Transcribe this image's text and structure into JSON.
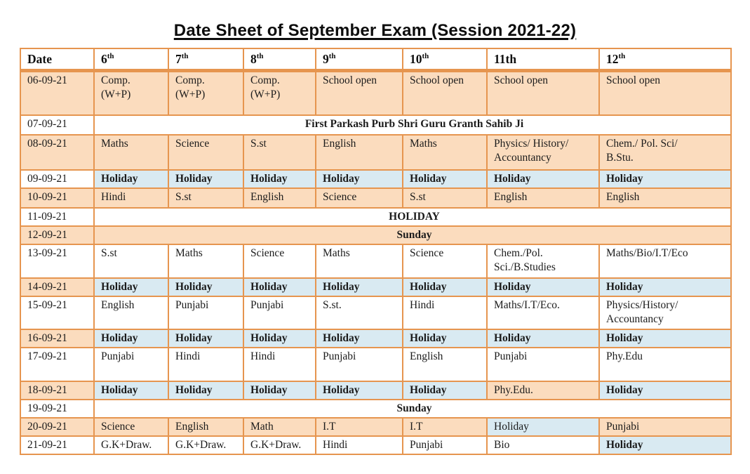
{
  "title": "Date Sheet of September Exam (Session 2021-22)",
  "colors": {
    "cell_orange": "#fbdcbe",
    "cell_blue": "#d9eaf2",
    "border_orange": "#e6954f",
    "text": "#1b1b1b"
  },
  "table": {
    "date_header": "Date",
    "class_headers": [
      {
        "num": "6",
        "suffix": "th",
        "superscript": true
      },
      {
        "num": "7",
        "suffix": "th",
        "superscript": true
      },
      {
        "num": "8",
        "suffix": "th",
        "superscript": true
      },
      {
        "num": "9",
        "suffix": "th",
        "superscript": true
      },
      {
        "num": "10",
        "suffix": "th",
        "superscript": true
      },
      {
        "num": "11",
        "suffix": "th",
        "superscript": false
      },
      {
        "num": "12",
        "suffix": "th",
        "superscript": true
      }
    ],
    "rows": [
      {
        "date": "06-09-21",
        "date_bg": "orange",
        "cells": [
          {
            "text": "Comp.\n(W+P)",
            "bg": "orange",
            "bold": false
          },
          {
            "text": "Comp.\n(W+P)",
            "bg": "orange",
            "bold": false
          },
          {
            "text": "Comp.\n(W+P)",
            "bg": "orange",
            "bold": false
          },
          {
            "text": "School open",
            "bg": "orange",
            "bold": false
          },
          {
            "text": "School open",
            "bg": "orange",
            "bold": false
          },
          {
            "text": "School open",
            "bg": "orange",
            "bold": false
          },
          {
            "text": "School open",
            "bg": "orange",
            "bold": false
          }
        ]
      },
      {
        "date": "07-09-21",
        "date_bg": "white",
        "merged": {
          "text": "First Parkash Purb Shri Guru Granth Sahib Ji",
          "bg": "white",
          "bold": true
        }
      },
      {
        "date": "08-09-21",
        "date_bg": "orange",
        "cells": [
          {
            "text": "Maths",
            "bg": "orange",
            "bold": false
          },
          {
            "text": "Science",
            "bg": "orange",
            "bold": false
          },
          {
            "text": "S.st",
            "bg": "orange",
            "bold": false
          },
          {
            "text": "English",
            "bg": "orange",
            "bold": false
          },
          {
            "text": "Maths",
            "bg": "orange",
            "bold": false
          },
          {
            "text": "Physics/ History/\nAccountancy",
            "bg": "orange",
            "bold": false
          },
          {
            "text": "Chem./ Pol. Sci/\nB.Stu.",
            "bg": "orange",
            "bold": false
          }
        ]
      },
      {
        "date": "09-09-21",
        "date_bg": "white",
        "cells": [
          {
            "text": "Holiday",
            "bg": "blue",
            "bold": true
          },
          {
            "text": "Holiday",
            "bg": "blue",
            "bold": true
          },
          {
            "text": "Holiday",
            "bg": "blue",
            "bold": true
          },
          {
            "text": "Holiday",
            "bg": "blue",
            "bold": true
          },
          {
            "text": "Holiday",
            "bg": "blue",
            "bold": true
          },
          {
            "text": "Holiday",
            "bg": "blue",
            "bold": true
          },
          {
            "text": "Holiday",
            "bg": "blue",
            "bold": true
          }
        ]
      },
      {
        "date": "10-09-21",
        "date_bg": "orange",
        "cells": [
          {
            "text": "Hindi",
            "bg": "orange",
            "bold": false
          },
          {
            "text": "S.st",
            "bg": "orange",
            "bold": false
          },
          {
            "text": "English",
            "bg": "orange",
            "bold": false
          },
          {
            "text": "Science",
            "bg": "orange",
            "bold": false
          },
          {
            "text": "S.st",
            "bg": "orange",
            "bold": false
          },
          {
            "text": "English",
            "bg": "orange",
            "bold": false
          },
          {
            "text": "English",
            "bg": "orange",
            "bold": false
          }
        ]
      },
      {
        "date": "11-09-21",
        "date_bg": "white",
        "merged": {
          "text": "HOLIDAY",
          "bg": "white",
          "bold": true
        }
      },
      {
        "date": "12-09-21",
        "date_bg": "orange",
        "merged": {
          "text": "Sunday",
          "bg": "orange",
          "bold": true
        }
      },
      {
        "date": "13-09-21",
        "date_bg": "white",
        "cells": [
          {
            "text": "S.st",
            "bg": "white",
            "bold": false
          },
          {
            "text": "Maths",
            "bg": "white",
            "bold": false
          },
          {
            "text": "Science",
            "bg": "white",
            "bold": false
          },
          {
            "text": "Maths",
            "bg": "white",
            "bold": false
          },
          {
            "text": "Science",
            "bg": "white",
            "bold": false
          },
          {
            "text": "Chem./Pol.\nSci./B.Studies",
            "bg": "white",
            "bold": false
          },
          {
            "text": "Maths/Bio/I.T/Eco",
            "bg": "white",
            "bold": false
          }
        ]
      },
      {
        "date": "14-09-21",
        "date_bg": "orange",
        "cells": [
          {
            "text": "Holiday",
            "bg": "blue",
            "bold": true
          },
          {
            "text": "Holiday",
            "bg": "blue",
            "bold": true
          },
          {
            "text": "Holiday",
            "bg": "blue",
            "bold": true
          },
          {
            "text": "Holiday",
            "bg": "blue",
            "bold": true
          },
          {
            "text": "Holiday",
            "bg": "blue",
            "bold": true
          },
          {
            "text": "Holiday",
            "bg": "blue",
            "bold": true
          },
          {
            "text": "Holiday",
            "bg": "blue",
            "bold": true
          }
        ]
      },
      {
        "date": "15-09-21",
        "date_bg": "white",
        "cells": [
          {
            "text": "English",
            "bg": "white",
            "bold": false
          },
          {
            "text": "Punjabi",
            "bg": "white",
            "bold": false
          },
          {
            "text": "Punjabi",
            "bg": "white",
            "bold": false
          },
          {
            "text": "S.st.",
            "bg": "white",
            "bold": false
          },
          {
            "text": "Hindi",
            "bg": "white",
            "bold": false
          },
          {
            "text": "Maths/I.T/Eco.",
            "bg": "white",
            "bold": false
          },
          {
            "text": "Physics/History/\nAccountancy",
            "bg": "white",
            "bold": false
          }
        ]
      },
      {
        "date": "16-09-21",
        "date_bg": "orange",
        "cells": [
          {
            "text": "Holiday",
            "bg": "blue",
            "bold": true
          },
          {
            "text": "Holiday",
            "bg": "blue",
            "bold": true
          },
          {
            "text": "Holiday",
            "bg": "blue",
            "bold": true
          },
          {
            "text": "Holiday",
            "bg": "blue",
            "bold": true
          },
          {
            "text": "Holiday",
            "bg": "blue",
            "bold": true
          },
          {
            "text": "Holiday",
            "bg": "blue",
            "bold": true
          },
          {
            "text": "Holiday",
            "bg": "blue",
            "bold": true
          }
        ]
      },
      {
        "date": "17-09-21",
        "date_bg": "white",
        "cells": [
          {
            "text": "Punjabi",
            "bg": "white",
            "bold": false
          },
          {
            "text": "Hindi",
            "bg": "white",
            "bold": false
          },
          {
            "text": "Hindi",
            "bg": "white",
            "bold": false
          },
          {
            "text": "Punjabi",
            "bg": "white",
            "bold": false
          },
          {
            "text": "English",
            "bg": "white",
            "bold": false
          },
          {
            "text": "Punjabi",
            "bg": "white",
            "bold": false
          },
          {
            "text": "Phy.Edu",
            "bg": "white",
            "bold": false
          }
        ]
      },
      {
        "date": "18-09-21",
        "date_bg": "orange",
        "cells": [
          {
            "text": "Holiday",
            "bg": "blue",
            "bold": true
          },
          {
            "text": "Holiday",
            "bg": "blue",
            "bold": true
          },
          {
            "text": "Holiday",
            "bg": "blue",
            "bold": true
          },
          {
            "text": "Holiday",
            "bg": "blue",
            "bold": true
          },
          {
            "text": "Holiday",
            "bg": "blue",
            "bold": true
          },
          {
            "text": "Phy.Edu.",
            "bg": "orange",
            "bold": false
          },
          {
            "text": "Holiday",
            "bg": "blue",
            "bold": true
          }
        ]
      },
      {
        "date": "19-09-21",
        "date_bg": "white",
        "merged": {
          "text": "Sunday",
          "bg": "white",
          "bold": true
        }
      },
      {
        "date": "20-09-21",
        "date_bg": "orange",
        "cells": [
          {
            "text": "Science",
            "bg": "orange",
            "bold": false
          },
          {
            "text": "English",
            "bg": "orange",
            "bold": false
          },
          {
            "text": "Math",
            "bg": "orange",
            "bold": false
          },
          {
            "text": "I.T",
            "bg": "orange",
            "bold": false
          },
          {
            "text": "I.T",
            "bg": "orange",
            "bold": false
          },
          {
            "text": "Holiday",
            "bg": "blue",
            "bold": false
          },
          {
            "text": "Punjabi",
            "bg": "orange",
            "bold": false
          }
        ]
      },
      {
        "date": "21-09-21",
        "date_bg": "white",
        "cells": [
          {
            "text": "G.K+Draw.",
            "bg": "white",
            "bold": false
          },
          {
            "text": "G.K+Draw.",
            "bg": "white",
            "bold": false
          },
          {
            "text": "G.K+Draw.",
            "bg": "white",
            "bold": false
          },
          {
            "text": "Hindi",
            "bg": "white",
            "bold": false
          },
          {
            "text": "Punjabi",
            "bg": "white",
            "bold": false
          },
          {
            "text": "Bio",
            "bg": "white",
            "bold": false
          },
          {
            "text": "Holiday",
            "bg": "blue",
            "bold": true
          }
        ]
      }
    ]
  }
}
